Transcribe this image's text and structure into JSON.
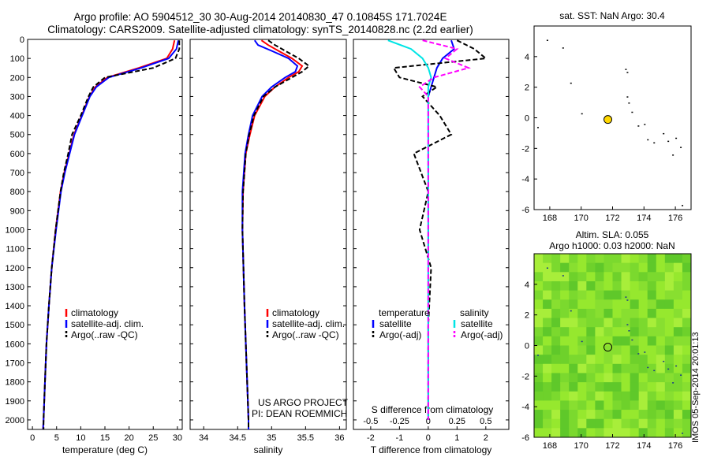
{
  "header": {
    "title_line1": "Argo profile: AO 5904512_30 30-Aug-2014 20140830_47 0.10845S 171.7024E",
    "title_line2": "Climatology: CARS2009. Satellite-adjusted climatology: synTS_20140828.nc (2.2d earlier)"
  },
  "colors": {
    "climatology": "#ff0000",
    "satellite": "#0000ff",
    "argo": "#000000",
    "sat_salinity": "#00e5e5",
    "argo_salinity_adj": "#ff00ff",
    "float": "#ffd700"
  },
  "legend": {
    "panel1": [
      "climatology",
      "satellite-adj. clim.",
      "Argo(..raw -QC)"
    ],
    "panel2": [
      "climatology",
      "satellite-adj. clim.",
      "Argo(..raw -QC)"
    ],
    "panel3_headers": [
      "temperature",
      "salinity"
    ],
    "panel3_left": [
      "satellite",
      "Argo(-adj)"
    ],
    "panel3_right": [
      "satellite",
      "Argo(-adj)"
    ]
  },
  "annotations": {
    "project": "US ARGO PROJECT",
    "pi": "PI: DEAN ROEMMICH",
    "s_diff_label": "S difference from climatology",
    "sst_title": "sat. SST: NaN Argo: 30.4",
    "sla_title1": "Altim. SLA: 0.055",
    "sla_title2": "Argo h1000: 0.03 h2000: NaN",
    "stamp": "IMOS 05-Sep-2014 20:01:13"
  },
  "chart_data": [
    {
      "type": "line",
      "panel": "temperature profile",
      "xlabel": "temperature (deg C)",
      "ylabel": "",
      "xlim": [
        -1,
        31
      ],
      "ylim": [
        0,
        2050
      ],
      "y_inverted": true,
      "xticks": [
        "0",
        "5",
        "10",
        "15",
        "20",
        "25",
        "30"
      ],
      "yticks": [
        "0",
        "100",
        "200",
        "300",
        "400",
        "500",
        "600",
        "700",
        "800",
        "900",
        "1000",
        "1100",
        "1200",
        "1300",
        "1400",
        "1500",
        "1600",
        "1700",
        "1800",
        "1900",
        "2000"
      ],
      "depth": [
        5,
        50,
        100,
        150,
        200,
        250,
        300,
        400,
        500,
        600,
        700,
        800,
        1000,
        1200,
        1400,
        1600,
        1800,
        2000,
        2050
      ],
      "series": [
        {
          "name": "climatology",
          "values": [
            29.4,
            29.0,
            27.8,
            22.0,
            15.5,
            13.0,
            11.8,
            10.2,
            8.6,
            7.6,
            6.6,
            5.8,
            4.8,
            4.0,
            3.4,
            2.9,
            2.6,
            2.3,
            2.2
          ]
        },
        {
          "name": "satellite-adj. clim.",
          "values": [
            30.2,
            29.8,
            28.2,
            22.5,
            15.8,
            13.2,
            11.9,
            10.3,
            8.7,
            7.7,
            6.7,
            5.9,
            4.9,
            4.0,
            3.4,
            2.9,
            2.6,
            2.3,
            2.2
          ]
        },
        {
          "name": "Argo(..raw -QC)",
          "values": [
            30.4,
            30.4,
            29.6,
            25.0,
            15.0,
            12.6,
            11.6,
            10.0,
            8.2,
            7.4,
            6.5,
            5.8,
            4.8,
            4.0,
            3.4,
            2.9,
            2.6,
            2.3,
            2.3
          ]
        }
      ]
    },
    {
      "type": "line",
      "panel": "salinity profile",
      "xlabel": "salinity",
      "xlim": [
        33.8,
        36.1
      ],
      "ylim": [
        0,
        2050
      ],
      "y_inverted": true,
      "xticks": [
        "34",
        "34.5",
        "35",
        "35.5",
        "36"
      ],
      "depth": [
        5,
        30,
        60,
        100,
        140,
        170,
        200,
        250,
        300,
        400,
        500,
        600,
        800,
        1000,
        1400,
        1800,
        2000,
        2050
      ],
      "series": [
        {
          "name": "climatology",
          "values": [
            34.85,
            34.95,
            35.1,
            35.3,
            35.45,
            35.4,
            35.25,
            35.05,
            34.9,
            34.75,
            34.68,
            34.62,
            34.58,
            34.57,
            34.6,
            34.64,
            34.66,
            34.66
          ]
        },
        {
          "name": "satellite-adj. clim.",
          "values": [
            34.75,
            34.8,
            35.0,
            35.25,
            35.38,
            35.35,
            35.2,
            35.0,
            34.86,
            34.72,
            34.66,
            34.61,
            34.57,
            34.57,
            34.6,
            34.64,
            34.66,
            34.66
          ]
        },
        {
          "name": "Argo(..raw -QC)",
          "values": [
            34.95,
            35.05,
            35.2,
            35.4,
            35.55,
            35.45,
            35.3,
            35.05,
            34.88,
            34.74,
            34.67,
            34.62,
            34.58,
            34.57,
            34.6,
            34.64,
            34.66,
            34.66
          ]
        }
      ]
    },
    {
      "type": "line",
      "panel": "difference from climatology",
      "xlabel": "T difference from climatology",
      "xlim": [
        -2.6,
        2.8
      ],
      "ylim": [
        0,
        2050
      ],
      "y_inverted": true,
      "xticks": [
        "-2",
        "-1",
        "0",
        "1",
        "2"
      ],
      "top_xticks": [
        "-0.5",
        "-0.25",
        "0",
        "0.25",
        "0.5"
      ],
      "depth": [
        5,
        50,
        100,
        150,
        200,
        250,
        300,
        400,
        500,
        600,
        800,
        1000,
        1200,
        1500,
        1800,
        2000
      ],
      "series": [
        {
          "name": "temperature satellite",
          "values": [
            0.8,
            0.9,
            0.5,
            0.3,
            0.2,
            0.1,
            0.0,
            0.0,
            0.0,
            0.0,
            0.0,
            0.0,
            0.0,
            0.0,
            0.0,
            0.0
          ]
        },
        {
          "name": "temperature Argo(-adj)",
          "values": [
            1.0,
            1.6,
            2.0,
            -1.2,
            -1.0,
            0.3,
            -0.2,
            0.4,
            0.8,
            -0.5,
            0.0,
            -0.3,
            0.1,
            0.0,
            0.0,
            0.0
          ]
        },
        {
          "name": "salinity satellite",
          "values": [
            -1.4,
            -0.6,
            -0.2,
            0.0,
            0.1,
            0.0,
            0.0,
            0.0,
            0.0,
            0.0,
            0.0,
            0.0,
            0.0,
            0.0,
            0.0,
            0.0
          ]
        },
        {
          "name": "salinity Argo(-adj)",
          "values": [
            -0.2,
            1.0,
            0.6,
            1.4,
            0.2,
            -0.3,
            0.0,
            0.0,
            0.0,
            0.0,
            0.0,
            0.0,
            0.0,
            0.0,
            0.0,
            0.0
          ]
        }
      ]
    },
    {
      "type": "scatter",
      "panel": "sat. SST map",
      "title": "sat. SST: NaN Argo: 30.4",
      "xlim": [
        167,
        177
      ],
      "ylim": [
        -6,
        6
      ],
      "xticks": [
        "168",
        "170",
        "172",
        "174",
        "176"
      ],
      "yticks": [
        "4",
        "2",
        "0",
        "-2",
        "-4",
        "-6"
      ],
      "float_position": [
        171.7,
        -0.11
      ],
      "coast_points": [
        [
          168.8,
          4.6
        ],
        [
          169.3,
          2.3
        ],
        [
          170.0,
          0.3
        ],
        [
          172.8,
          3.2
        ],
        [
          172.9,
          3.0
        ],
        [
          172.9,
          1.4
        ],
        [
          173.0,
          1.0
        ],
        [
          173.2,
          0.4
        ],
        [
          173.6,
          -0.5
        ],
        [
          174.0,
          -0.4
        ],
        [
          174.2,
          -1.4
        ],
        [
          174.6,
          -1.6
        ],
        [
          175.2,
          -1.0
        ],
        [
          175.5,
          -1.5
        ],
        [
          175.8,
          -2.4
        ],
        [
          176.0,
          -1.3
        ],
        [
          176.3,
          -1.9
        ],
        [
          167.2,
          -0.6
        ],
        [
          167.8,
          5.1
        ],
        [
          176.4,
          -5.7
        ]
      ]
    },
    {
      "type": "heatmap",
      "panel": "altimetry SLA map",
      "title": "Altim. SLA: 0.055",
      "xlim": [
        167,
        177
      ],
      "ylim": [
        -6,
        6
      ],
      "xticks": [
        "168",
        "170",
        "172",
        "174",
        "176"
      ],
      "yticks": [
        "4",
        "2",
        "0",
        "-2",
        "-4",
        "-6"
      ],
      "float_position": [
        171.7,
        -0.11
      ]
    }
  ]
}
